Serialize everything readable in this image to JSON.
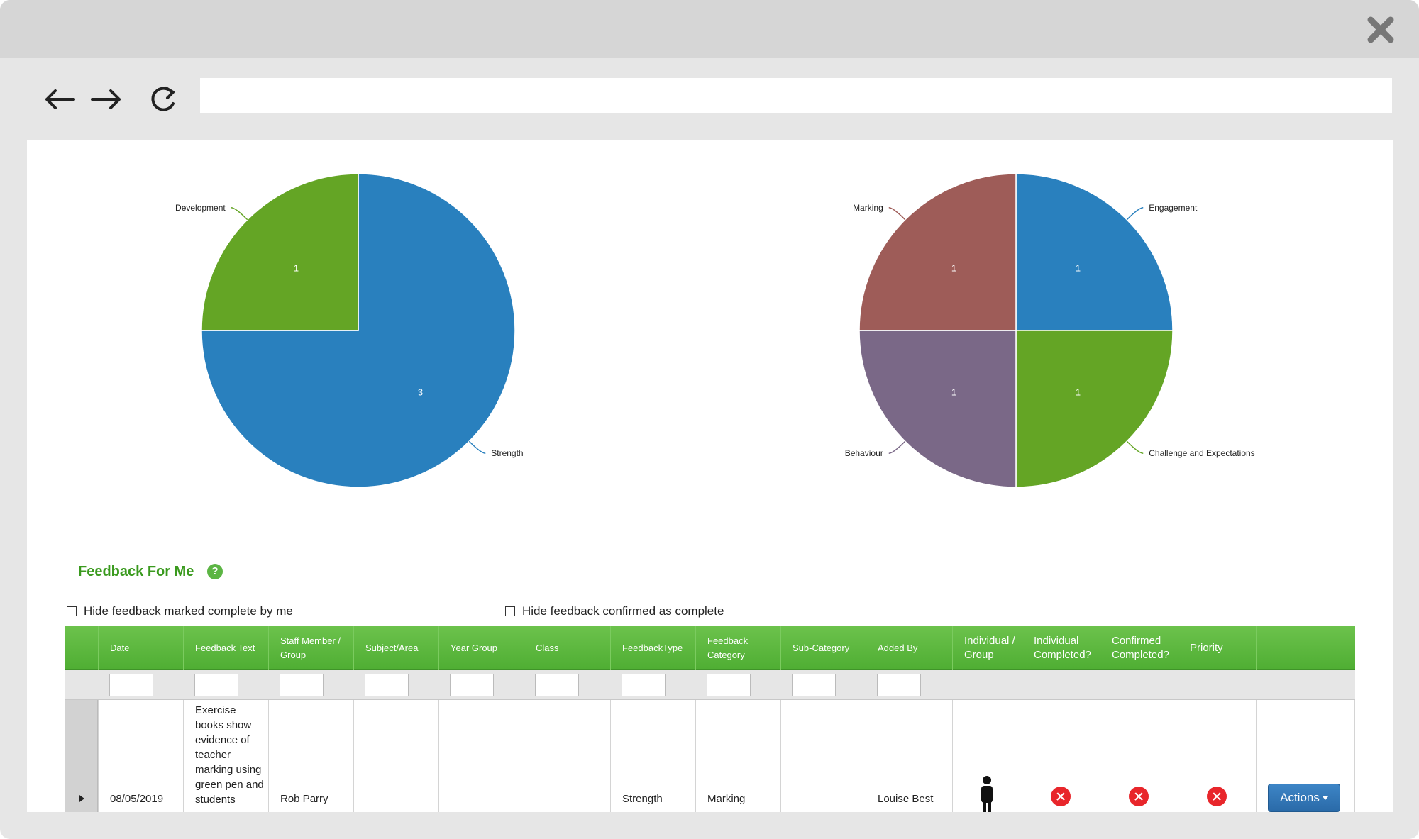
{
  "browser": {
    "address": "",
    "icons": [
      "back-arrow-icon",
      "forward-arrow-icon",
      "refresh-icon",
      "close-icon"
    ]
  },
  "chart_data": [
    {
      "type": "pie",
      "slices": [
        {
          "label": "Strength",
          "value": 3,
          "color": "#2980be"
        },
        {
          "label": "Development",
          "value": 1,
          "color": "#64a525"
        }
      ]
    },
    {
      "type": "pie",
      "slices": [
        {
          "label": "Engagement",
          "value": 1,
          "color": "#2980be"
        },
        {
          "label": "Challenge and Expectations",
          "value": 1,
          "color": "#64a525"
        },
        {
          "label": "Behaviour",
          "value": 1,
          "color": "#7a6887"
        },
        {
          "label": "Marking",
          "value": 1,
          "color": "#9e5c58"
        }
      ]
    }
  ],
  "section": {
    "title": "Feedback For Me",
    "help": "?"
  },
  "filters": {
    "hide_mine": "Hide feedback marked complete by me",
    "hide_confirmed": "Hide feedback confirmed as complete"
  },
  "grid": {
    "headers": [
      "Date",
      "Feedback Text",
      "Staff Member / Group",
      "Subject/Area",
      "Year Group",
      "Class",
      "FeedbackType",
      "Feedback Category",
      "Sub-Category",
      "Added By",
      "Individual / Group",
      "Individual Completed?",
      "Confirmed Completed?",
      "Priority"
    ],
    "row": {
      "date": "08/05/2019",
      "feedback_text": "Exercise books show evidence of teacher marking using green pen and students",
      "staff_member": "Rob Parry",
      "subject": "",
      "year_group": "",
      "class": "",
      "feedback_type": "Strength",
      "feedback_category": "Marking",
      "sub_category": "",
      "added_by": "Louise Best",
      "individual_group": "person-icon",
      "individual_completed": "x-icon",
      "confirmed_completed": "x-icon",
      "priority": "x-icon",
      "actions_label": "Actions"
    }
  },
  "colors": {
    "header_green": "#5cb544",
    "title_green": "#3a9a1e",
    "button_blue": "#2f75b5",
    "status_red": "#e8262b"
  }
}
